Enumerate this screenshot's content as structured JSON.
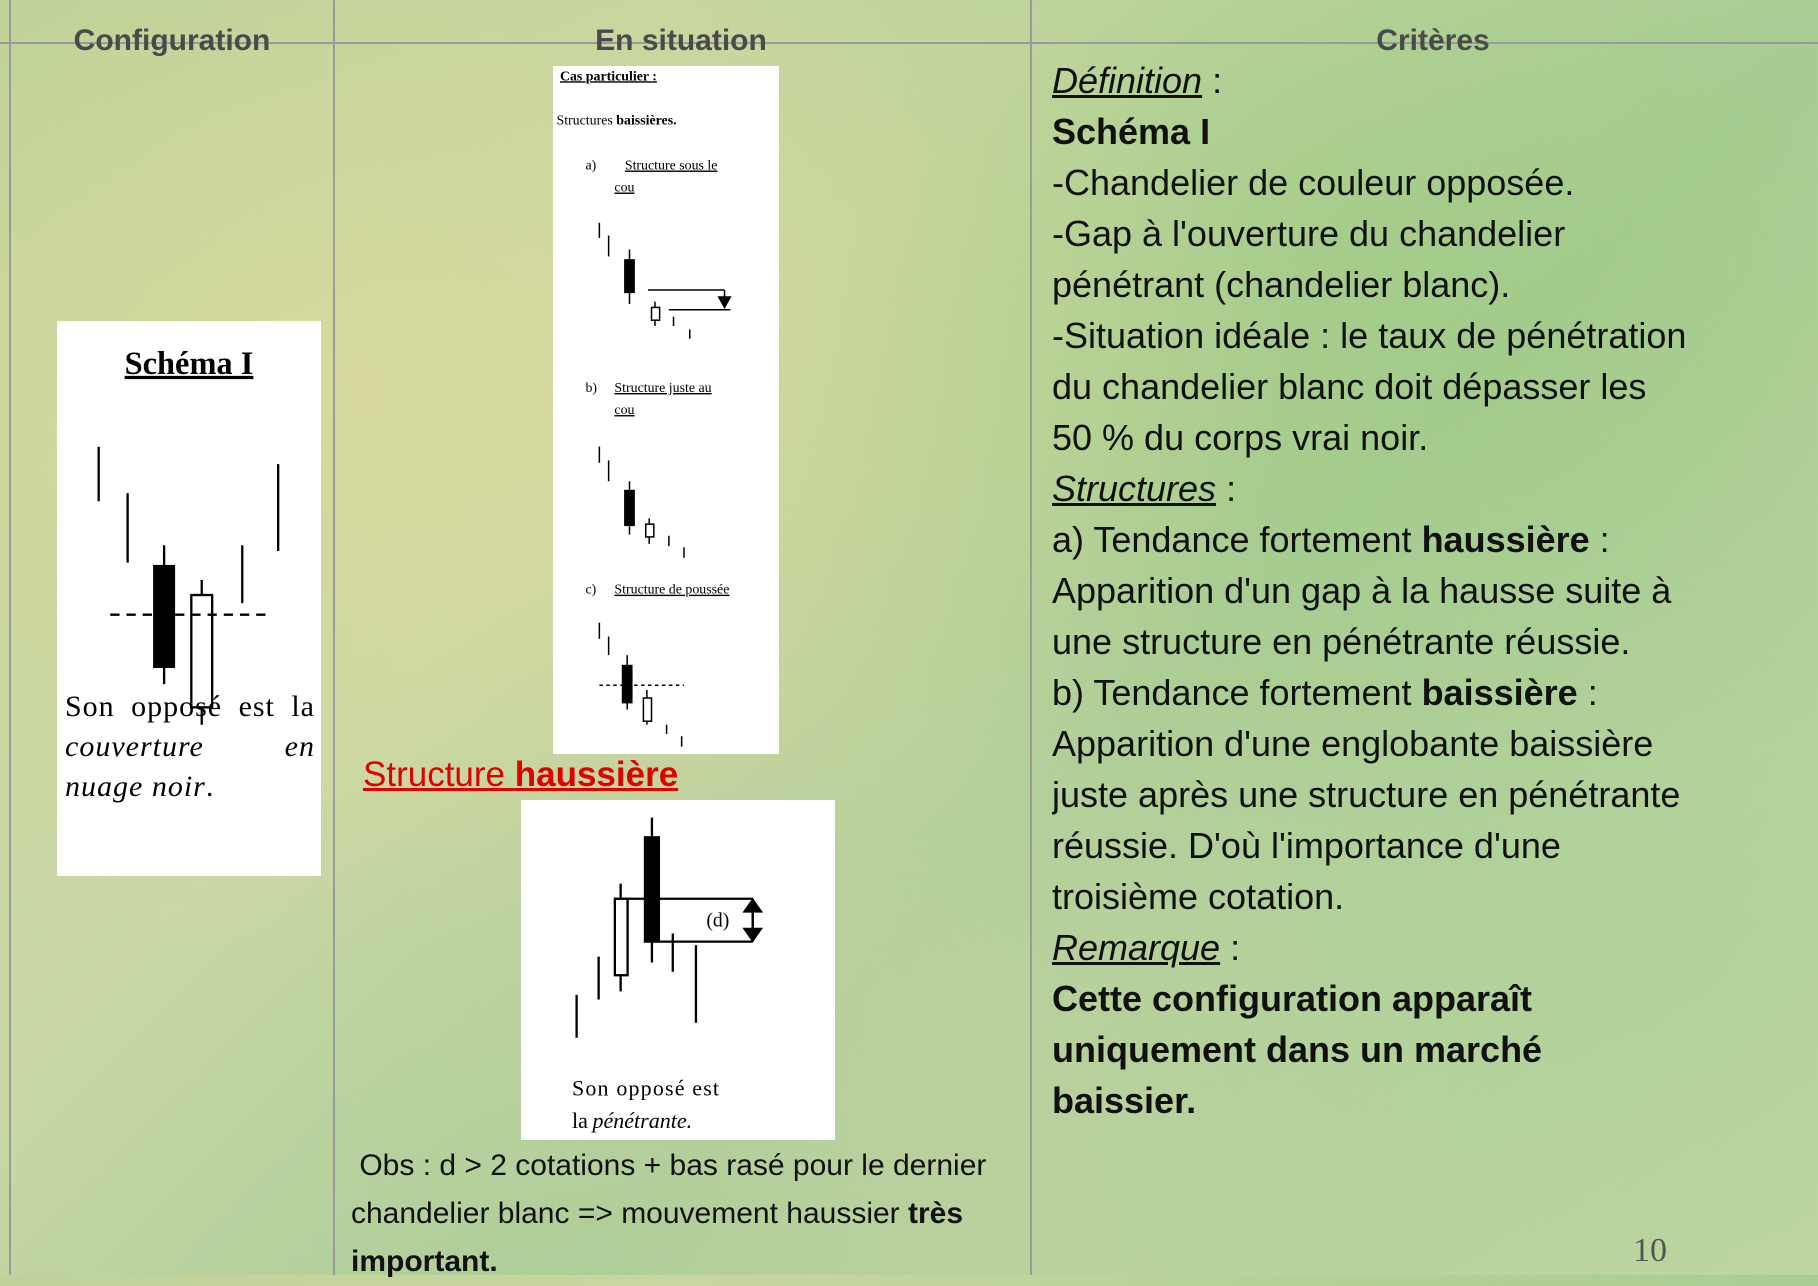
{
  "header": {
    "columns": [
      "Configuration",
      "En situation",
      "Critères"
    ]
  },
  "configuration": {
    "figure_title": "Schéma I",
    "caption": {
      "text": "Son opposé est la",
      "italic": "couverture en nuage noir",
      "end": "."
    }
  },
  "situation": {
    "figure": {
      "title": "Cas particulier :",
      "subtitle": {
        "text": "Structures",
        "bold": "baissières."
      },
      "items": [
        {
          "label": "a)",
          "text": [
            "Structure sous le",
            "cou"
          ]
        },
        {
          "label": "b)",
          "text": [
            "Structure juste au",
            "cou"
          ]
        },
        {
          "label": "c)",
          "text": [
            "Structure de poussée"
          ]
        }
      ]
    },
    "link": {
      "text": "Structure",
      "bold": "haussière"
    },
    "figure2": {
      "label": "(d)",
      "caption": "Son opposé est",
      "caption2": {
        "text": "la",
        "italic": "pénétrante."
      }
    },
    "note": {
      "text": "Obs : d > 2 cotations + bas rasé pour le dernier chandelier blanc => mouvement haussier",
      "bold": "très important."
    }
  },
  "criteria": {
    "lines": [
      [
        {
          "text": "Définition",
          "style": "em-u"
        },
        {
          "text": " :",
          "style": "plain"
        }
      ],
      [
        {
          "text": "Schéma I",
          "style": "bold"
        }
      ],
      [
        {
          "text": "-Chandelier de couleur opposée.",
          "style": "plain"
        }
      ],
      [
        {
          "text": "-Gap à l'ouverture du chandelier",
          "style": "plain"
        }
      ],
      [
        {
          "text": "pénétrant (chandelier blanc).",
          "style": "plain"
        }
      ],
      [
        {
          "text": "-Situation idéale : le taux de pénétration",
          "style": "plain"
        }
      ],
      [
        {
          "text": "du chandelier blanc doit dépasser les",
          "style": "plain"
        }
      ],
      [
        {
          "text": "50 % du corps vrai noir.",
          "style": "plain"
        }
      ],
      [
        {
          "text": "Structures",
          "style": "em-u"
        },
        {
          "text": " :",
          "style": "plain"
        }
      ],
      [
        {
          "text": "a) Tendance fortement ",
          "style": "plain"
        },
        {
          "text": "haussière",
          "style": "bold"
        },
        {
          "text": " :",
          "style": "plain"
        }
      ],
      [
        {
          "text": "Apparition d'un gap à la hausse suite à",
          "style": "plain"
        }
      ],
      [
        {
          "text": "une structure en pénétrante réussie.",
          "style": "plain"
        }
      ],
      [
        {
          "text": "b) Tendance fortement ",
          "style": "plain"
        },
        {
          "text": "baissière",
          "style": "bold"
        },
        {
          "text": " :",
          "style": "plain"
        }
      ],
      [
        {
          "text": "Apparition d'une englobante baissière",
          "style": "plain"
        }
      ],
      [
        {
          "text": "juste après une structure en pénétrante",
          "style": "plain"
        }
      ],
      [
        {
          "text": "réussie. D'où l'importance d'une",
          "style": "plain"
        }
      ],
      [
        {
          "text": "troisième cotation.",
          "style": "plain"
        }
      ],
      [
        {
          "text": "Remarque",
          "style": "em-u"
        },
        {
          "text": " :",
          "style": "plain"
        }
      ],
      [
        {
          "text": "Cette configuration apparaît",
          "style": "bold"
        }
      ],
      [
        {
          "text": "uniquement dans un marché",
          "style": "bold"
        }
      ],
      [
        {
          "text": "baissier.",
          "style": "bold"
        }
      ]
    ]
  },
  "page_number": "10"
}
